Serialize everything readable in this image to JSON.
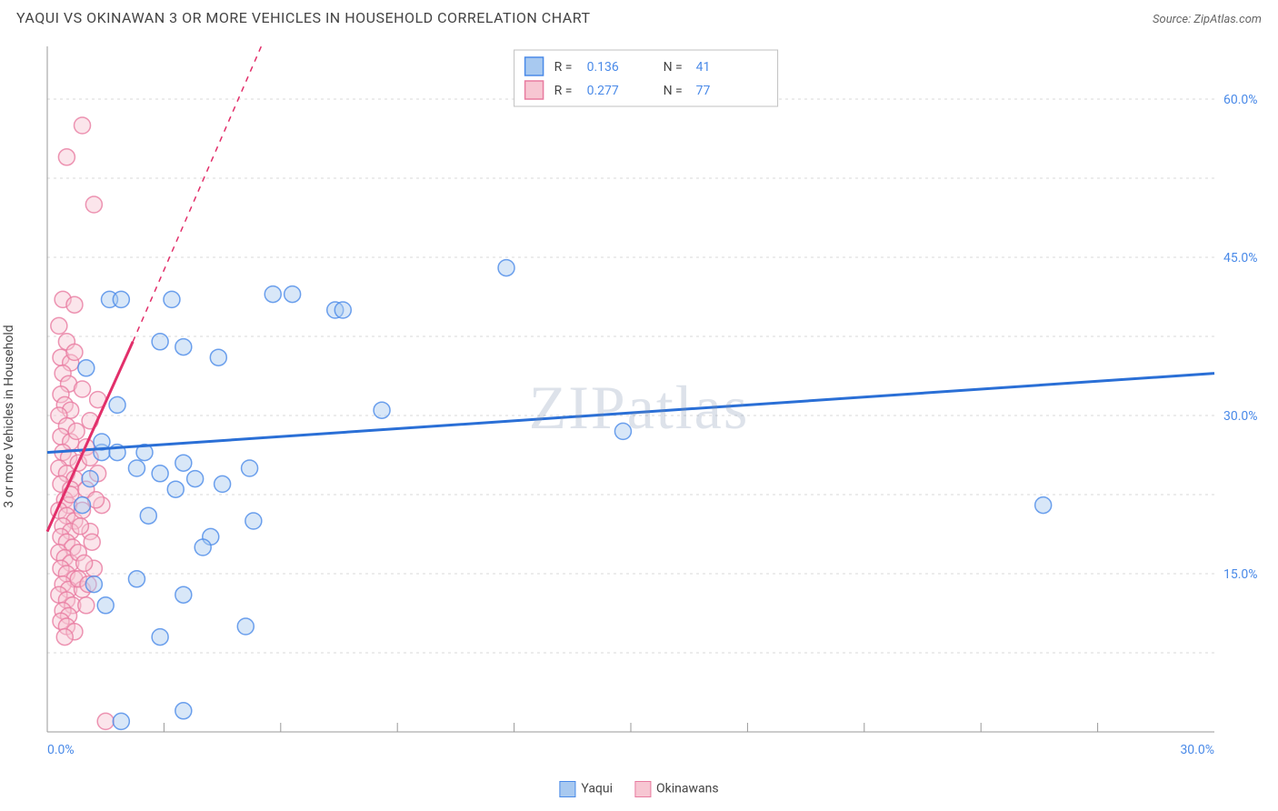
{
  "title": "YAQUI VS OKINAWAN 3 OR MORE VEHICLES IN HOUSEHOLD CORRELATION CHART",
  "source_label": "Source: ZipAtlas.com",
  "ylabel": "3 or more Vehicles in Household",
  "watermark": "ZIPatlas",
  "chart": {
    "type": "scatter",
    "background_color": "#ffffff",
    "grid_color": "#d8d8d8",
    "axis_color": "#999999",
    "xlim": [
      0,
      30
    ],
    "ylim": [
      0,
      65
    ],
    "xtick_labels": [
      "0.0%",
      "30.0%"
    ],
    "xtick_positions": [
      0,
      30
    ],
    "xtick_minor": [
      3,
      6,
      9,
      12,
      15,
      18,
      21,
      24,
      27
    ],
    "ytick_labels": [
      "15.0%",
      "30.0%",
      "45.0%",
      "60.0%"
    ],
    "ytick_positions": [
      15,
      30,
      45,
      60
    ],
    "ytick_minor": [
      7.5,
      22.5,
      37.5,
      52.5
    ],
    "tick_label_color": "#4a8ae8",
    "tick_label_fontsize": 14,
    "marker_radius": 9,
    "marker_opacity": 0.45,
    "marker_stroke_width": 1.5,
    "legend_top": {
      "border_color": "#c0c0c0",
      "rows": [
        {
          "swatch_fill": "#a8c9f0",
          "swatch_stroke": "#4a8ae8",
          "r_label": "R =",
          "r_value": "0.136",
          "n_label": "N =",
          "n_value": "41"
        },
        {
          "swatch_fill": "#f7c6d2",
          "swatch_stroke": "#e87ba0",
          "r_label": "R =",
          "r_value": "0.277",
          "n_label": "N =",
          "n_value": "77"
        }
      ]
    },
    "legend_bottom": [
      {
        "swatch_fill": "#a8c9f0",
        "swatch_stroke": "#4a8ae8",
        "label": "Yaqui"
      },
      {
        "swatch_fill": "#f7c6d2",
        "swatch_stroke": "#e87ba0",
        "label": "Okinawans"
      }
    ],
    "series": [
      {
        "name": "Yaqui",
        "color_fill": "#a8c9f0",
        "color_stroke": "#4a8ae8",
        "trend": {
          "color": "#2a6fd6",
          "width": 3,
          "x1": 0,
          "y1": 26.5,
          "x2": 30,
          "y2": 34,
          "dash_x": 30,
          "dash_y": 34
        },
        "points": [
          [
            1.6,
            41.0
          ],
          [
            1.0,
            34.5
          ],
          [
            1.9,
            41.0
          ],
          [
            3.2,
            41.0
          ],
          [
            5.8,
            41.5
          ],
          [
            6.3,
            41.5
          ],
          [
            7.4,
            40.0
          ],
          [
            7.6,
            40.0
          ],
          [
            11.8,
            44.0
          ],
          [
            2.9,
            37.0
          ],
          [
            3.5,
            36.5
          ],
          [
            4.4,
            35.5
          ],
          [
            1.8,
            31.0
          ],
          [
            1.4,
            26.5
          ],
          [
            1.8,
            26.5
          ],
          [
            2.5,
            26.5
          ],
          [
            2.3,
            25.0
          ],
          [
            2.9,
            24.5
          ],
          [
            3.5,
            25.5
          ],
          [
            3.8,
            24.0
          ],
          [
            3.3,
            23.0
          ],
          [
            4.5,
            23.5
          ],
          [
            5.2,
            25.0
          ],
          [
            2.6,
            20.5
          ],
          [
            4.2,
            18.5
          ],
          [
            5.3,
            20.0
          ],
          [
            8.6,
            30.5
          ],
          [
            4.0,
            17.5
          ],
          [
            2.3,
            14.5
          ],
          [
            3.5,
            13.0
          ],
          [
            5.1,
            10.0
          ],
          [
            2.9,
            9.0
          ],
          [
            1.2,
            14.0
          ],
          [
            1.5,
            12.0
          ],
          [
            0.9,
            21.5
          ],
          [
            1.1,
            24.0
          ],
          [
            1.4,
            27.5
          ],
          [
            14.8,
            28.5
          ],
          [
            25.6,
            21.5
          ],
          [
            3.5,
            2.0
          ],
          [
            1.9,
            1.0
          ]
        ]
      },
      {
        "name": "Okinawans",
        "color_fill": "#f7c6d2",
        "color_stroke": "#e87ba0",
        "trend": {
          "color": "#e22f6a",
          "width": 3,
          "x1": 0,
          "y1": 19.0,
          "x2": 2.2,
          "y2": 37.0,
          "dash_x": 5.5,
          "dash_y": 65
        },
        "points": [
          [
            0.9,
            57.5
          ],
          [
            0.5,
            54.5
          ],
          [
            1.2,
            50.0
          ],
          [
            0.4,
            41.0
          ],
          [
            0.7,
            40.5
          ],
          [
            0.3,
            38.5
          ],
          [
            0.5,
            37.0
          ],
          [
            0.35,
            35.5
          ],
          [
            0.6,
            35.0
          ],
          [
            0.4,
            34.0
          ],
          [
            0.55,
            33.0
          ],
          [
            0.35,
            32.0
          ],
          [
            0.45,
            31.0
          ],
          [
            0.6,
            30.5
          ],
          [
            0.3,
            30.0
          ],
          [
            0.5,
            29.0
          ],
          [
            0.35,
            28.0
          ],
          [
            0.6,
            27.5
          ],
          [
            0.4,
            26.5
          ],
          [
            0.55,
            26.0
          ],
          [
            0.3,
            25.0
          ],
          [
            0.5,
            24.5
          ],
          [
            0.7,
            24.0
          ],
          [
            0.35,
            23.5
          ],
          [
            0.6,
            23.0
          ],
          [
            0.45,
            22.0
          ],
          [
            0.55,
            21.5
          ],
          [
            0.3,
            21.0
          ],
          [
            0.5,
            20.5
          ],
          [
            0.7,
            20.0
          ],
          [
            0.4,
            19.5
          ],
          [
            0.6,
            19.0
          ],
          [
            0.35,
            18.5
          ],
          [
            0.5,
            18.0
          ],
          [
            0.65,
            17.5
          ],
          [
            0.3,
            17.0
          ],
          [
            0.45,
            16.5
          ],
          [
            0.6,
            16.0
          ],
          [
            0.35,
            15.5
          ],
          [
            0.5,
            15.0
          ],
          [
            0.7,
            14.5
          ],
          [
            0.4,
            14.0
          ],
          [
            0.55,
            13.5
          ],
          [
            0.3,
            13.0
          ],
          [
            0.5,
            12.5
          ],
          [
            0.65,
            12.0
          ],
          [
            0.4,
            11.5
          ],
          [
            0.55,
            11.0
          ],
          [
            0.35,
            10.5
          ],
          [
            0.5,
            10.0
          ],
          [
            0.7,
            9.5
          ],
          [
            0.45,
            9.0
          ],
          [
            0.6,
            22.5
          ],
          [
            0.8,
            25.5
          ],
          [
            1.0,
            27.0
          ],
          [
            1.1,
            29.5
          ],
          [
            1.3,
            31.5
          ],
          [
            1.0,
            23.0
          ],
          [
            0.9,
            21.0
          ],
          [
            1.1,
            19.0
          ],
          [
            0.8,
            17.0
          ],
          [
            1.2,
            15.5
          ],
          [
            0.9,
            13.5
          ],
          [
            1.0,
            12.0
          ],
          [
            0.8,
            14.5
          ],
          [
            1.3,
            24.5
          ],
          [
            1.1,
            26.0
          ],
          [
            0.75,
            28.5
          ],
          [
            0.9,
            32.5
          ],
          [
            1.4,
            21.5
          ],
          [
            1.15,
            18.0
          ],
          [
            0.85,
            19.5
          ],
          [
            0.95,
            16.0
          ],
          [
            1.05,
            14.0
          ],
          [
            1.25,
            22.0
          ],
          [
            1.5,
            1.0
          ],
          [
            0.7,
            36.0
          ]
        ]
      }
    ]
  }
}
